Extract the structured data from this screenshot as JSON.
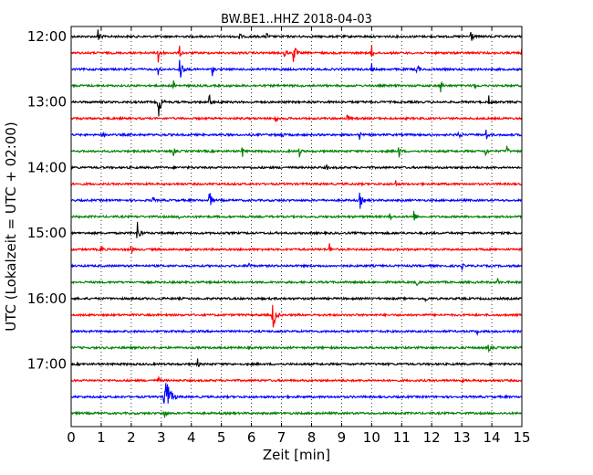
{
  "chart_data": {
    "type": "line",
    "title": "BW.BE1..HHZ 2018-04-03",
    "xlabel": "Zeit  [min]",
    "ylabel": "UTC (Lokalzeit = UTC + 02:00)",
    "xlim": [
      0,
      15
    ],
    "x_ticks": [
      "0",
      "1",
      "2",
      "3",
      "4",
      "5",
      "6",
      "7",
      "8",
      "9",
      "10",
      "11",
      "12",
      "13",
      "14",
      "15"
    ],
    "grid": "vertical dotted at each minute",
    "y_tick_labels": [
      "12:00",
      "13:00",
      "14:00",
      "15:00",
      "16:00",
      "17:00"
    ],
    "series_colors": [
      "#000000",
      "#ff0000",
      "#0000ff",
      "#008000"
    ],
    "traces": [
      {
        "time": "12:00",
        "color": "#000000",
        "events": [
          [
            0.9,
            0.5
          ],
          [
            5.6,
            0.3
          ],
          [
            6.5,
            0.3
          ],
          [
            13.3,
            0.5
          ]
        ]
      },
      {
        "time": "12:15",
        "color": "#ff0000",
        "events": [
          [
            2.9,
            0.7
          ],
          [
            3.6,
            0.4
          ],
          [
            7.1,
            0.4
          ],
          [
            7.4,
            0.7
          ],
          [
            10.0,
            0.4
          ],
          [
            15.0,
            0.3
          ]
        ]
      },
      {
        "time": "12:30",
        "color": "#0000ff",
        "events": [
          [
            2.9,
            0.4
          ],
          [
            3.6,
            0.9
          ],
          [
            4.7,
            0.3
          ],
          [
            10.0,
            0.3
          ],
          [
            11.5,
            0.5
          ]
        ]
      },
      {
        "time": "12:45",
        "color": "#008000",
        "events": [
          [
            3.4,
            0.3
          ],
          [
            12.3,
            0.4
          ],
          [
            13.4,
            0.3
          ]
        ]
      },
      {
        "time": "13:00",
        "color": "#000000",
        "events": [
          [
            2.9,
            0.9
          ],
          [
            4.6,
            0.4
          ],
          [
            5.0,
            0.3
          ],
          [
            13.9,
            0.3
          ]
        ]
      },
      {
        "time": "13:15",
        "color": "#ff0000",
        "events": [
          [
            6.8,
            0.3
          ],
          [
            9.2,
            0.3
          ]
        ]
      },
      {
        "time": "13:30",
        "color": "#0000ff",
        "events": [
          [
            1.1,
            0.3
          ],
          [
            7.0,
            0.3
          ],
          [
            9.6,
            0.3
          ],
          [
            12.9,
            0.4
          ],
          [
            13.8,
            0.4
          ]
        ]
      },
      {
        "time": "13:45",
        "color": "#008000",
        "events": [
          [
            3.4,
            0.3
          ],
          [
            5.7,
            0.3
          ],
          [
            7.6,
            0.3
          ],
          [
            10.9,
            0.4
          ],
          [
            13.8,
            0.3
          ],
          [
            14.5,
            0.3
          ]
        ]
      },
      {
        "time": "14:00",
        "color": "#000000",
        "events": [
          [
            8.5,
            0.2
          ]
        ]
      },
      {
        "time": "14:15",
        "color": "#ff0000",
        "events": [
          [
            10.8,
            0.2
          ]
        ]
      },
      {
        "time": "14:30",
        "color": "#0000ff",
        "events": [
          [
            2.7,
            0.3
          ],
          [
            4.6,
            0.6
          ],
          [
            9.6,
            0.6
          ]
        ]
      },
      {
        "time": "14:45",
        "color": "#008000",
        "events": [
          [
            3.6,
            0.2
          ],
          [
            10.6,
            0.3
          ],
          [
            11.4,
            0.4
          ]
        ]
      },
      {
        "time": "15:00",
        "color": "#000000",
        "events": [
          [
            2.2,
            0.8
          ]
        ]
      },
      {
        "time": "15:15",
        "color": "#ff0000",
        "events": [
          [
            1.0,
            0.3
          ],
          [
            2.0,
            0.3
          ],
          [
            8.6,
            0.3
          ]
        ]
      },
      {
        "time": "15:30",
        "color": "#0000ff",
        "events": [
          [
            5.9,
            0.3
          ],
          [
            13.0,
            0.2
          ]
        ]
      },
      {
        "time": "15:45",
        "color": "#008000",
        "events": [
          [
            11.5,
            0.2
          ],
          [
            14.2,
            0.2
          ]
        ]
      },
      {
        "time": "16:00",
        "color": "#000000",
        "events": [
          [
            11.8,
            0.2
          ]
        ]
      },
      {
        "time": "16:15",
        "color": "#ff0000",
        "events": [
          [
            6.7,
            1.0
          ]
        ]
      },
      {
        "time": "16:30",
        "color": "#0000ff",
        "events": [
          [
            13.5,
            0.2
          ]
        ]
      },
      {
        "time": "16:45",
        "color": "#008000",
        "events": [
          [
            13.9,
            0.3
          ]
        ]
      },
      {
        "time": "17:00",
        "color": "#000000",
        "events": [
          [
            4.2,
            0.3
          ]
        ]
      },
      {
        "time": "17:15",
        "color": "#ff0000",
        "events": [
          [
            2.9,
            0.3
          ],
          [
            13.0,
            0.2
          ]
        ]
      },
      {
        "time": "17:30",
        "color": "#0000ff",
        "events": [
          [
            3.1,
            1.8
          ]
        ]
      },
      {
        "time": "17:45",
        "color": "#008000",
        "events": [
          [
            3.1,
            0.4
          ]
        ]
      }
    ]
  }
}
